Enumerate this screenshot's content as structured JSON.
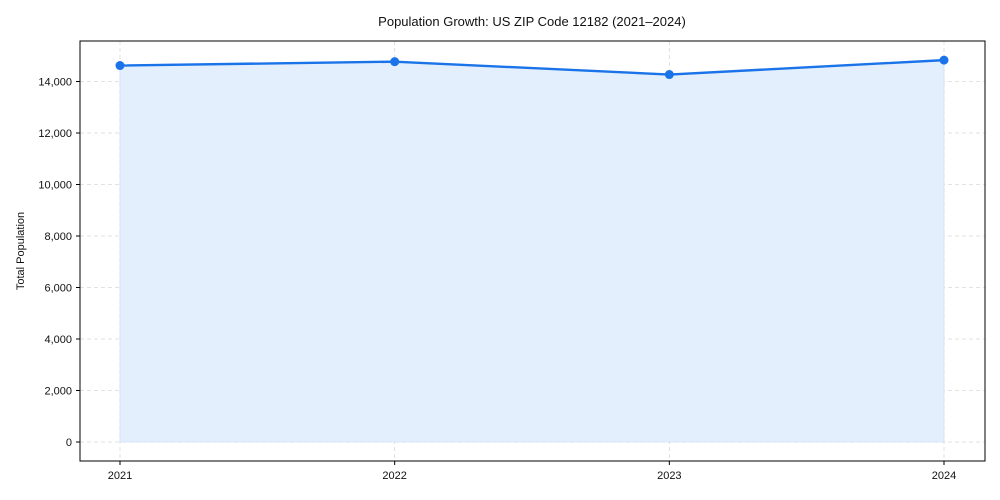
{
  "chart_data": {
    "type": "area",
    "title": "Population Growth: US ZIP Code 12182 (2021–2024)",
    "xlabel": "",
    "ylabel": "Total Population",
    "categories": [
      "2021",
      "2022",
      "2023",
      "2024"
    ],
    "series": [
      {
        "name": "Total Population",
        "values": [
          14620,
          14770,
          14270,
          14830
        ]
      }
    ],
    "ylim": [
      -750,
      15600
    ],
    "yticks": [
      0,
      2000,
      4000,
      6000,
      8000,
      10000,
      12000,
      14000
    ],
    "ytick_labels": [
      "0",
      "2,000",
      "4,000",
      "6,000",
      "8,000",
      "10,000",
      "12,000",
      "14,000"
    ],
    "grid": true,
    "legend": null,
    "colors": {
      "line": "#1a73e8",
      "fill": "#e3eefd",
      "fill_edge": "#c5d9f5"
    }
  }
}
